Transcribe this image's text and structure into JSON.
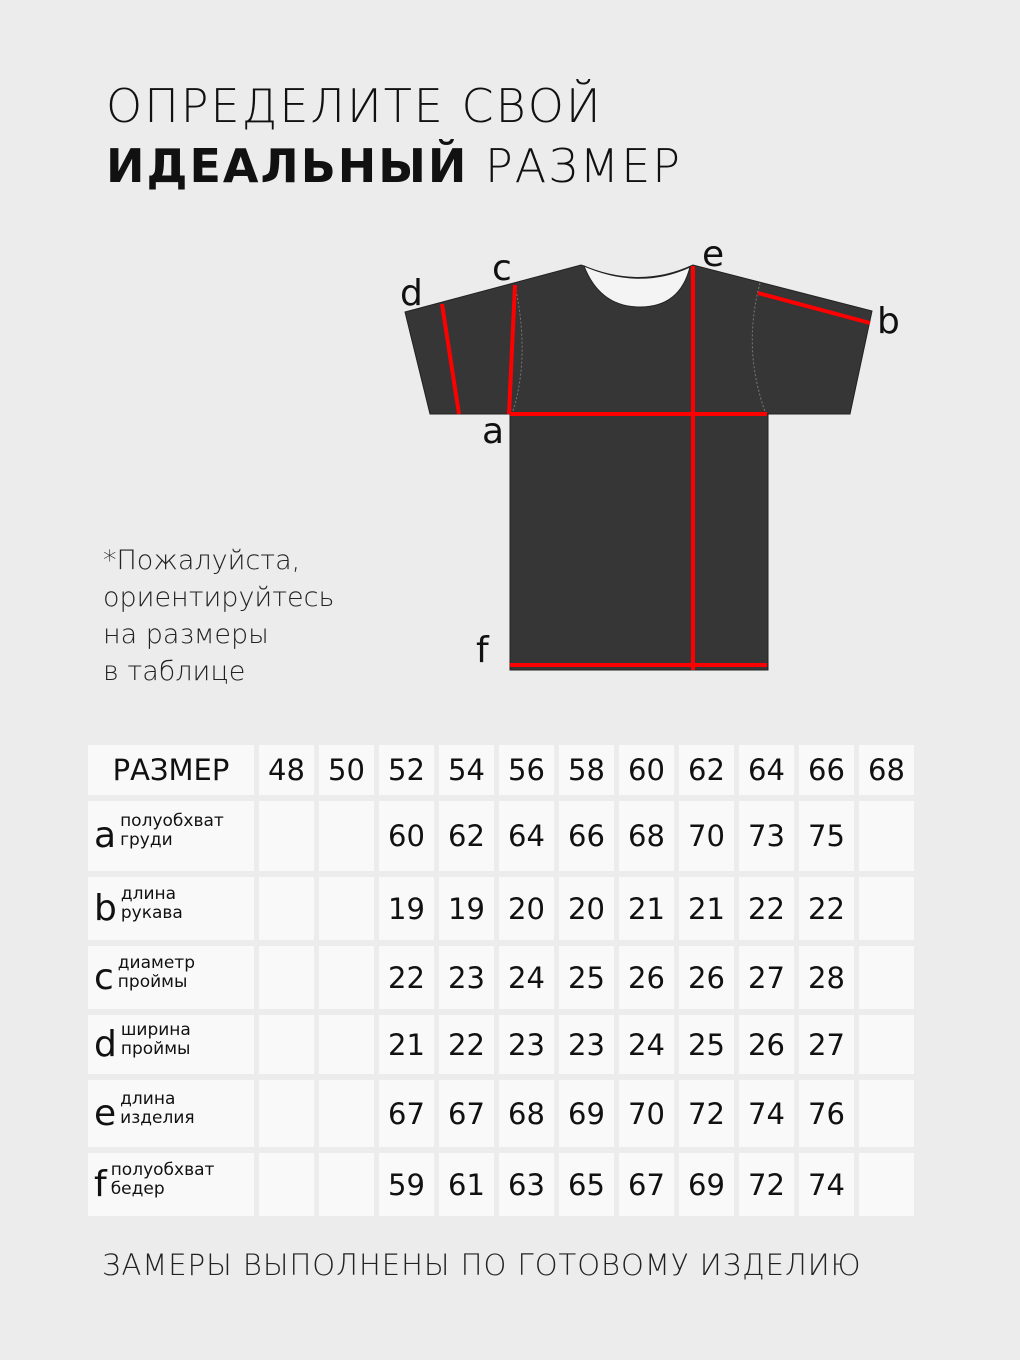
{
  "title": {
    "line1": "ОПРЕДЕЛИТЕ СВОЙ",
    "line2_bold": "ИДЕАЛЬНЫЙ",
    "line2_rest": " РАЗМЕР"
  },
  "diagram": {
    "labels": {
      "a": "a",
      "b": "b",
      "c": "c",
      "d": "d",
      "e": "e",
      "f": "f"
    },
    "shirt_color": "#363636",
    "line_color": "#ff0000"
  },
  "note": [
    "*Пожалуйста,",
    "ориентируйтесь",
    "на размеры",
    "в таблице"
  ],
  "table": {
    "header": "РАЗМЕР",
    "sizes": [
      "48",
      "50",
      "52",
      "54",
      "56",
      "58",
      "60",
      "62",
      "64",
      "66",
      "68"
    ],
    "rows": [
      {
        "letter": "a",
        "desc1": "полуобхват",
        "desc2": "груди",
        "values": [
          "",
          "",
          "60",
          "62",
          "64",
          "66",
          "68",
          "70",
          "73",
          "75",
          ""
        ]
      },
      {
        "letter": "b",
        "desc1": "длина",
        "desc2": "рукава",
        "values": [
          "",
          "",
          "19",
          "19",
          "20",
          "20",
          "21",
          "21",
          "22",
          "22",
          ""
        ]
      },
      {
        "letter": "c",
        "desc1": "диаметр",
        "desc2": "проймы",
        "values": [
          "",
          "",
          "22",
          "23",
          "24",
          "25",
          "26",
          "26",
          "27",
          "28",
          ""
        ]
      },
      {
        "letter": "d",
        "desc1": "ширина",
        "desc2": "проймы",
        "values": [
          "",
          "",
          "21",
          "22",
          "23",
          "23",
          "24",
          "25",
          "26",
          "27",
          ""
        ]
      },
      {
        "letter": "e",
        "desc1": "длина",
        "desc2": "изделия",
        "values": [
          "",
          "",
          "67",
          "67",
          "68",
          "69",
          "70",
          "72",
          "74",
          "76",
          ""
        ]
      },
      {
        "letter": "f",
        "desc1": "полуобхват",
        "desc2": "бедер",
        "values": [
          "",
          "",
          "59",
          "61",
          "63",
          "65",
          "67",
          "69",
          "72",
          "74",
          ""
        ]
      }
    ]
  },
  "footer": "ЗАМЕРЫ ВЫПОЛНЕНЫ ПО ГОТОВОМУ ИЗДЕЛИЮ"
}
